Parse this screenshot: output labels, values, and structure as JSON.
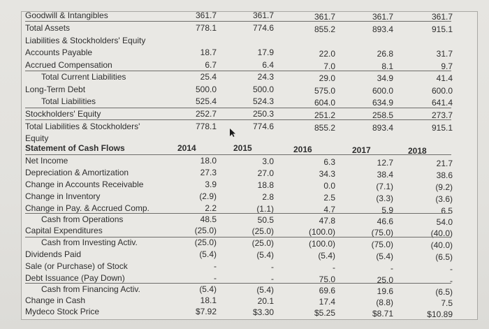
{
  "balance_sheet": {
    "rows": [
      {
        "label": "Goodwill & Intangibles",
        "values": [
          "361.7",
          "361.7",
          "361.7",
          "361.7",
          "361.7"
        ]
      },
      {
        "label": "Total Assets",
        "values": [
          "778.1",
          "774.6",
          "855.2",
          "893.4",
          "915.1"
        ]
      },
      {
        "label": "Liabilities & Stockholders' Equity",
        "values": [
          "",
          "",
          "",
          "",
          ""
        ]
      },
      {
        "label": "Accounts Payable",
        "values": [
          "18.7",
          "17.9",
          "22.0",
          "26.8",
          "31.7"
        ]
      },
      {
        "label": "Accrued Compensation",
        "values": [
          "6.7",
          "6.4",
          "7.0",
          "8.1",
          "9.7"
        ]
      },
      {
        "label": "Total Current Liabilities",
        "values": [
          "25.4",
          "24.3",
          "29.0",
          "34.9",
          "41.4"
        ]
      },
      {
        "label": "Long-Term Debt",
        "values": [
          "500.0",
          "500.0",
          "575.0",
          "600.0",
          "600.0"
        ]
      },
      {
        "label": "Total Liabilities",
        "values": [
          "525.4",
          "524.3",
          "604.0",
          "634.9",
          "641.4"
        ]
      },
      {
        "label": "Stockholders' Equity",
        "values": [
          "252.7",
          "250.3",
          "251.2",
          "258.5",
          "273.7"
        ]
      },
      {
        "label": "Total Liabilities & Stockholders'",
        "label2": "Equity",
        "values": [
          "778.1",
          "774.6",
          "855.2",
          "893.4",
          "915.1"
        ]
      }
    ]
  },
  "cash_flows": {
    "title": "Statement of Cash Flows",
    "years": [
      "2014",
      "2015",
      "2016",
      "2017",
      "2018"
    ],
    "rows": [
      {
        "label": "Net Income",
        "values": [
          "18.0",
          "3.0",
          "6.3",
          "12.7",
          "21.7"
        ]
      },
      {
        "label": "Depreciation & Amortization",
        "values": [
          "27.3",
          "27.0",
          "34.3",
          "38.4",
          "38.6"
        ]
      },
      {
        "label": "Change in Accounts Receivable",
        "values": [
          "3.9",
          "18.8",
          "0.0",
          "(7.1)",
          "(9.2)"
        ]
      },
      {
        "label": "Change in Inventory",
        "values": [
          "(2.9)",
          "2.8",
          "2.5",
          "(3.3)",
          "(3.6)"
        ]
      },
      {
        "label": "Change in Pay. & Accrued Comp.",
        "values": [
          "2.2",
          "(1.1)",
          "4.7",
          "5.9",
          "6.5"
        ]
      },
      {
        "label": "Cash from Operations",
        "values": [
          "48.5",
          "50.5",
          "47.8",
          "46.6",
          "54.0"
        ]
      },
      {
        "label": "Capital Expenditures",
        "values": [
          "(25.0)",
          "(25.0)",
          "(100.0)",
          "(75.0)",
          "(40.0)"
        ]
      },
      {
        "label": "Cash from Investing Activ.",
        "values": [
          "(25.0)",
          "(25.0)",
          "(100.0)",
          "(75.0)",
          "(40.0)"
        ]
      },
      {
        "label": "Dividends Paid",
        "values": [
          "(5.4)",
          "(5.4)",
          "(5.4)",
          "(5.4)",
          "(6.5)"
        ]
      },
      {
        "label": "Sale (or Purchase) of Stock",
        "values": [
          "-",
          "-",
          "-",
          "-",
          "-"
        ]
      },
      {
        "label": "Debt Issuance (Pay Down)",
        "values": [
          "-",
          "-",
          "75.0",
          "25.0",
          "-"
        ]
      },
      {
        "label": "Cash from Financing Activ.",
        "values": [
          "(5.4)",
          "(5.4)",
          "69.6",
          "19.6",
          "(6.5)"
        ]
      },
      {
        "label": "Change in Cash",
        "values": [
          "18.1",
          "20.1",
          "17.4",
          "(8.8)",
          "7.5"
        ]
      },
      {
        "label": "Mydeco Stock Price",
        "values": [
          "$7.92",
          "$3.30",
          "$5.25",
          "$8.71",
          "$10.89"
        ]
      }
    ]
  }
}
